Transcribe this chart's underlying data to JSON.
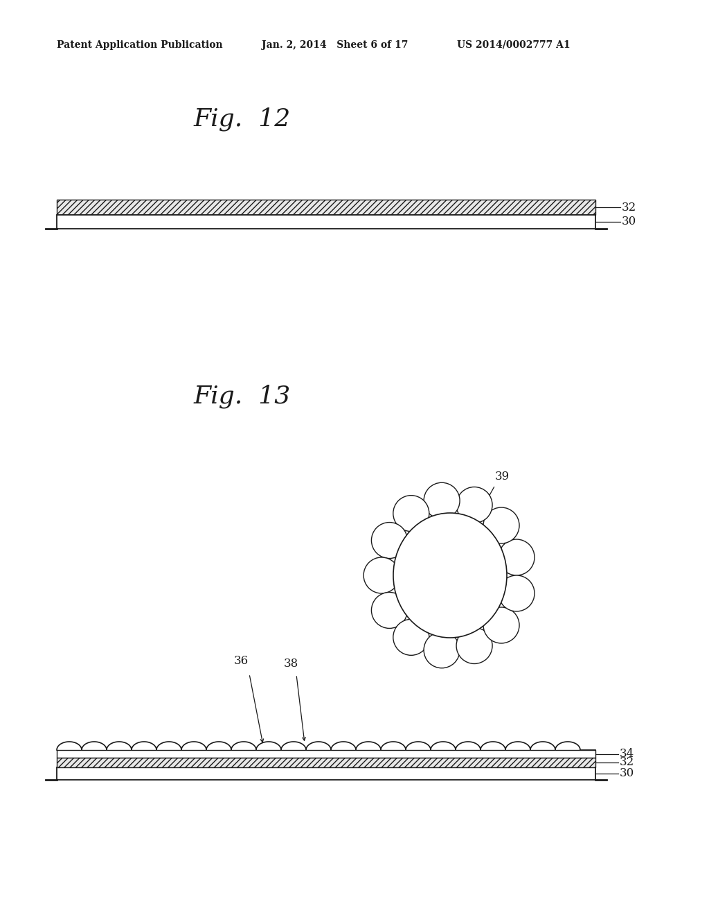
{
  "bg_color": "#ffffff",
  "header_left": "Patent Application Publication",
  "header_mid": "Jan. 2, 2014   Sheet 6 of 17",
  "header_right": "US 2014/0002777 A1",
  "fig12_label": "Fig.  12",
  "fig13_label": "Fig.  13",
  "line_color": "#1a1a1a"
}
